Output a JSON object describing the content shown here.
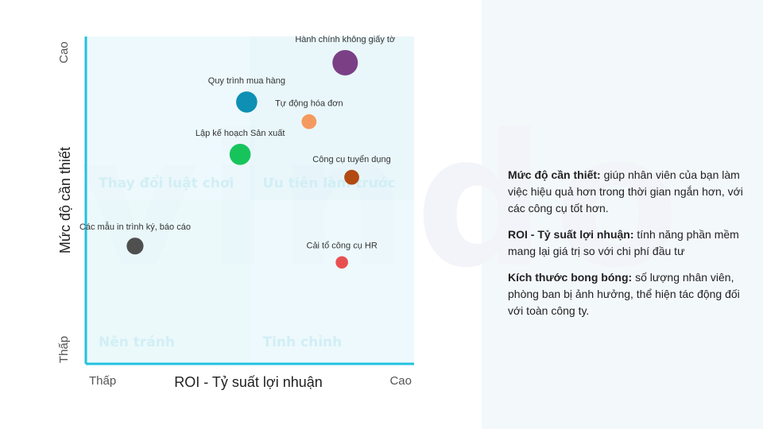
{
  "watermark": "vindo",
  "descriptions": [
    {
      "term": "Mức độ cần thiết:",
      "text": " giúp nhân viên của bạn làm việc hiệu quả hơn trong thời gian ngắn hơn, với các công cụ tốt hơn."
    },
    {
      "term": "ROI - Tỷ suất lợi nhuận:",
      "text": " tính năng phần mềm mang lại giá trị so với chi phí đầu tư"
    },
    {
      "term": "Kích thước bong bóng:",
      "text": " số lượng nhân viên, phòng ban bị ảnh hưởng, thể hiện tác động đối với toàn công ty."
    }
  ],
  "chart_data": {
    "type": "scatter",
    "variant": "bubble-quadrant",
    "xlabel": "ROI - Tỷ suất lợi nhuận",
    "ylabel": "Mức độ cần thiết",
    "x_low_label": "Thấp",
    "x_high_label": "Cao",
    "y_low_label": "Thấp",
    "y_high_label": "Cao",
    "xlim": [
      0,
      100
    ],
    "ylim": [
      0,
      100
    ],
    "grid": false,
    "quadrants": [
      {
        "label": "Thay đổi luật chơi",
        "position": "top-left",
        "color": "#e9f8fb"
      },
      {
        "label": "Ưu tiên làm trước",
        "position": "top-right",
        "color": "#e3f5fa"
      },
      {
        "label": "Nên tránh",
        "position": "bottom-left",
        "color": "#e6f7fa"
      },
      {
        "label": "Tinh chỉnh",
        "position": "bottom-right",
        "color": "#e9f8fb"
      }
    ],
    "axis_color": "#21c2e0",
    "points": [
      {
        "label": "Hành chính không giấy tờ",
        "x": 79,
        "y": 92,
        "size": 10,
        "color": "#7b3f86"
      },
      {
        "label": "Quy trình mua hàng",
        "x": 49,
        "y": 80,
        "size": 6,
        "color": "#0e8fb4"
      },
      {
        "label": "Tự động hóa đơn",
        "x": 68,
        "y": 74,
        "size": 2,
        "color": "#f59a5e"
      },
      {
        "label": "Lập kế hoạch Sản xuất",
        "x": 47,
        "y": 64,
        "size": 6,
        "color": "#17c45c"
      },
      {
        "label": "Công cụ tuyển dụng",
        "x": 81,
        "y": 57,
        "size": 2,
        "color": "#b34a12"
      },
      {
        "label": "Các mẫu in trình ký, báo cáo",
        "x": 15,
        "y": 36,
        "size": 3,
        "color": "#4f4f4f"
      },
      {
        "label": "Cải tổ công cụ HR",
        "x": 78,
        "y": 31,
        "size": 1,
        "color": "#e85050"
      }
    ]
  }
}
